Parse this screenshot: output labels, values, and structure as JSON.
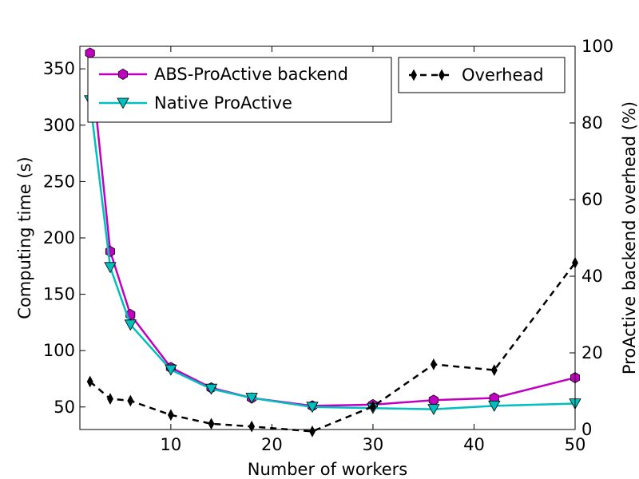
{
  "chart_data": {
    "type": "line",
    "xlabel": "Number of workers",
    "ylabel": "Computing time (s)",
    "y2label": "ProActive backend overhead (%)",
    "xlim": [
      1,
      50
    ],
    "ylim": [
      30,
      370
    ],
    "y2lim": [
      0,
      100
    ],
    "x_ticks": [
      "10",
      "20",
      "30",
      "40",
      "50"
    ],
    "y_ticks": [
      "50",
      "100",
      "150",
      "200",
      "250",
      "300",
      "350"
    ],
    "y2_ticks": [
      "0",
      "20",
      "40",
      "60",
      "80",
      "100"
    ],
    "grid": false,
    "legend_left": "upper-left",
    "legend_right": "upper-right",
    "series": [
      {
        "name": "ABS-ProActive backend",
        "axis": "left",
        "color": "#bf00bf",
        "marker": "hexagon",
        "linestyle": "solid",
        "x": [
          2,
          4,
          6,
          10,
          14,
          18,
          24,
          30,
          36,
          42,
          50
        ],
        "y": [
          364,
          188,
          132,
          85,
          67,
          58,
          51,
          52,
          56,
          58,
          76
        ]
      },
      {
        "name": "Native ProActive",
        "axis": "left",
        "color": "#00bfbf",
        "marker": "triangle-down",
        "linestyle": "solid",
        "x": [
          2,
          4,
          6,
          10,
          14,
          18,
          24,
          30,
          36,
          42,
          50
        ],
        "y": [
          322,
          174,
          123,
          83,
          66,
          58,
          50,
          49,
          48,
          51,
          53
        ]
      },
      {
        "name": "Overhead",
        "axis": "right",
        "color": "#000000",
        "marker": "thin-diamond",
        "linestyle": "dashed",
        "x": [
          2,
          4,
          6,
          10,
          14,
          18,
          24,
          30,
          36,
          42,
          50
        ],
        "y": [
          12.5,
          8.0,
          7.5,
          3.8,
          1.5,
          0.8,
          -0.5,
          6.0,
          17.0,
          15.5,
          43.5
        ]
      }
    ]
  }
}
